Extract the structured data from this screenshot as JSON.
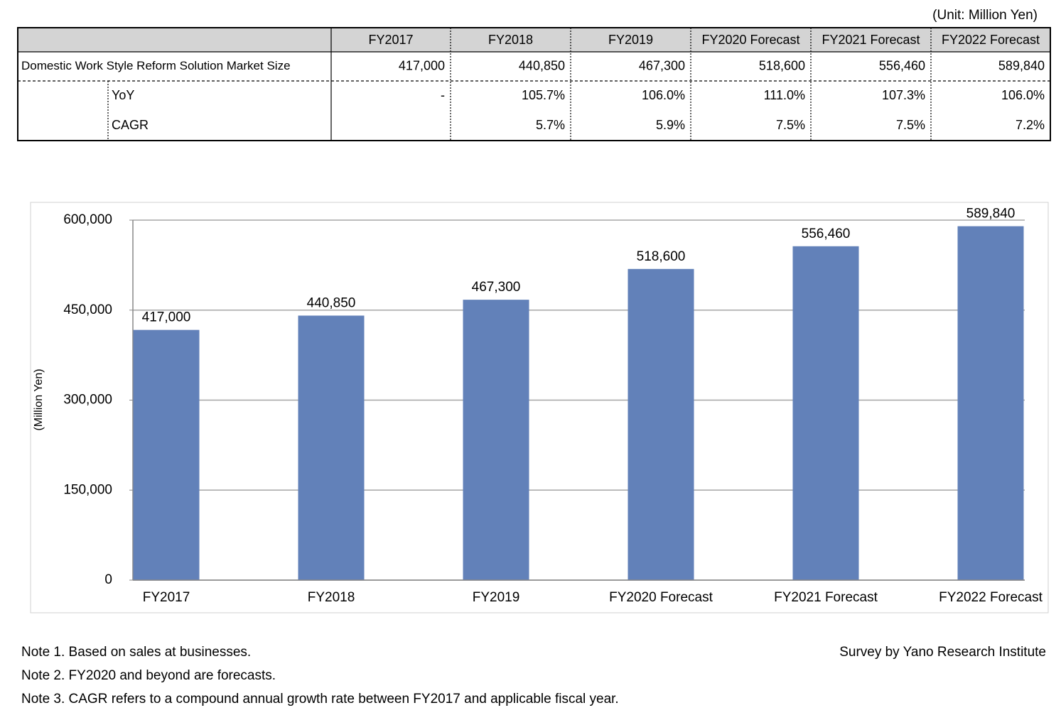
{
  "unit_note": "(Unit: Million Yen)",
  "table": {
    "columns": [
      "FY2017",
      "FY2018",
      "FY2019",
      "FY2020 Forecast",
      "FY2021 Forecast",
      "FY2022 Forecast"
    ],
    "rows": [
      {
        "label": "Domestic Work Style Reform Solution Market Size",
        "values": [
          "417,000",
          "440,850",
          "467,300",
          "518,600",
          "556,460",
          "589,840"
        ]
      },
      {
        "label": "YoY",
        "values": [
          "-",
          "105.7%",
          "106.0%",
          "111.0%",
          "107.3%",
          "106.0%"
        ]
      },
      {
        "label": "CAGR",
        "values": [
          null,
          "5.7%",
          "5.9%",
          "7.5%",
          "7.5%",
          "7.2%"
        ]
      }
    ]
  },
  "chart_data": {
    "type": "bar",
    "y_label": "(Million Yen)",
    "categories": [
      "FY2017",
      "FY2018",
      "FY2019",
      "FY2020 Forecast",
      "FY2021 Forecast",
      "FY2022 Forecast"
    ],
    "values": [
      417000,
      440850,
      467300,
      518600,
      556460,
      589840
    ],
    "value_labels": [
      "417,000",
      "440,850",
      "467,300",
      "518,600",
      "556,460",
      "589,840"
    ],
    "color": "#6281b9",
    "ylim": [
      0,
      600000
    ],
    "yticks": [
      0,
      {
        "value": 150000,
        "label": "150,000"
      },
      {
        "value": 300000,
        "label": "300,000"
      },
      {
        "value": 450000,
        "label": "450,000"
      },
      {
        "value": 600000,
        "label": "600,000"
      }
    ],
    "grid": true
  },
  "notes": [
    "Note 1. Based on sales at businesses.",
    "Note 2. FY2020 and beyond are forecasts.",
    "Note 3. CAGR refers to a compound annual growth rate between FY2017 and applicable fiscal year."
  ],
  "source": "Survey by Yano Research Institute"
}
